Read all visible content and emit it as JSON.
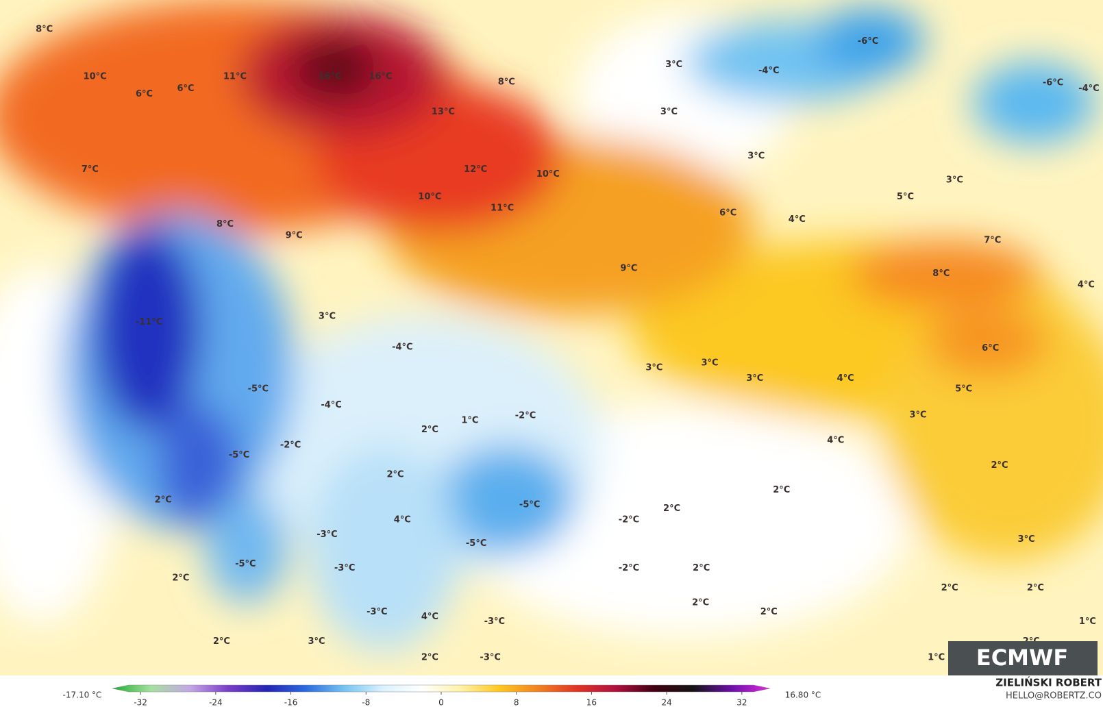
{
  "map_labels": [
    "8°C",
    "10°C",
    "11°C",
    "16°C",
    "16°C",
    "8°C",
    "3°C",
    "-4°C",
    "-6°C",
    "-6°C",
    "-4°C",
    "6°C",
    "6°C",
    "13°C",
    "3°C",
    "3°C",
    "7°C",
    "12°C",
    "10°C",
    "3°C",
    "10°C",
    "11°C",
    "5°C",
    "6°C",
    "8°C",
    "9°C",
    "4°C",
    "7°C",
    "9°C",
    "8°C",
    "4°C",
    "-11°C",
    "3°C",
    "-4°C",
    "6°C",
    "3°C",
    "3°C",
    "3°C",
    "4°C",
    "5°C",
    "-5°C",
    "-4°C",
    "-2°C",
    "1°C",
    "2°C",
    "3°C",
    "-2°C",
    "-5°C",
    "4°C",
    "2°C",
    "2°C",
    "2°C",
    "2°C",
    "-5°C",
    "2°C",
    "-2°C",
    "4°C",
    "-3°C",
    "-5°C",
    "3°C",
    "-5°C",
    "-3°C",
    "-2°C",
    "2°C",
    "2°C",
    "2°C",
    "2°C",
    "2°C",
    "2°C",
    "-3°C",
    "4°C",
    "-3°C",
    "1°C",
    "2°C",
    "3°C",
    "2°C",
    "-3°C",
    "2°C",
    "1°C"
  ],
  "colorbar": {
    "min_label": "-17.10 °C",
    "max_label": "16.80 °C",
    "range": [
      -35,
      35
    ],
    "ticks": [
      -32,
      -24,
      -16,
      -8,
      0,
      8,
      16,
      24,
      32
    ],
    "colors": [
      "#1fae2e",
      "#a6e0a0",
      "#c4a8e6",
      "#7a3cc8",
      "#2424b4",
      "#2a6ae0",
      "#76c4f2",
      "#dcf2ff",
      "#ffffff",
      "#fff2a8",
      "#ffc820",
      "#f28220",
      "#e03424",
      "#b01040",
      "#420012",
      "#141414",
      "#6a10a8",
      "#e028e0"
    ]
  },
  "logo": "ECMWF",
  "author": "ZIELIŃSKI ROBERT",
  "contact": "HELLO@ROBERTZ.CO"
}
